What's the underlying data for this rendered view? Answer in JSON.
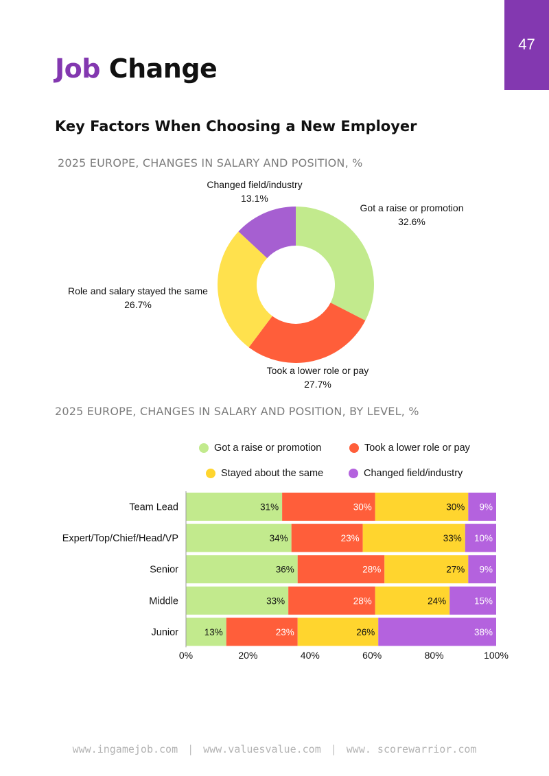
{
  "page_number": "47",
  "title": {
    "word1": "Job",
    "word2": "Change"
  },
  "subtitle": "Key Factors When Choosing a New Employer",
  "footer": {
    "links": [
      "www.ingamejob.com",
      "www.valuesvalue.com",
      "www. scorewarrior.com"
    ]
  },
  "chart_data": [
    {
      "type": "pie",
      "title": "2025 EUROPE, CHANGES IN SALARY AND POSITION, %",
      "categories": [
        "Got a raise or promotion",
        "Took a lower role or pay",
        "Role and salary stayed the same",
        "Changed field/industry"
      ],
      "values": [
        32.6,
        27.7,
        26.7,
        13.1
      ],
      "value_labels": [
        "32.6%",
        "27.7%",
        "26.7%",
        "13.1%"
      ],
      "colors": [
        "#c2ea8d",
        "#ff5e3a",
        "#ffe14d",
        "#a65fd1"
      ]
    },
    {
      "type": "bar",
      "orientation": "horizontal",
      "stacked": true,
      "title": "2025 EUROPE, CHANGES IN SALARY AND POSITION, BY LEVEL, %",
      "categories": [
        "Team Lead",
        "Expert/Top/Chief/Head/VP",
        "Senior",
        "Middle",
        "Junior"
      ],
      "series": [
        {
          "name": "Got a raise or promotion",
          "color": "#c2ea8d",
          "label_color": "#111111",
          "values": [
            31,
            34,
            36,
            33,
            13
          ]
        },
        {
          "name": "Took a lower role or pay",
          "color": "#ff5e3a",
          "label_color": "#ffffff",
          "values": [
            30,
            23,
            28,
            28,
            23
          ]
        },
        {
          "name": "Stayed about the same",
          "color": "#ffd52e",
          "label_color": "#111111",
          "values": [
            30,
            33,
            27,
            24,
            26
          ]
        },
        {
          "name": "Changed field/industry",
          "color": "#b462de",
          "label_color": "#ffffff",
          "values": [
            9,
            10,
            9,
            15,
            38
          ]
        }
      ],
      "xlim": [
        0,
        100
      ],
      "xticks": [
        "0%",
        "20%",
        "40%",
        "60%",
        "80%",
        "100%"
      ]
    }
  ]
}
